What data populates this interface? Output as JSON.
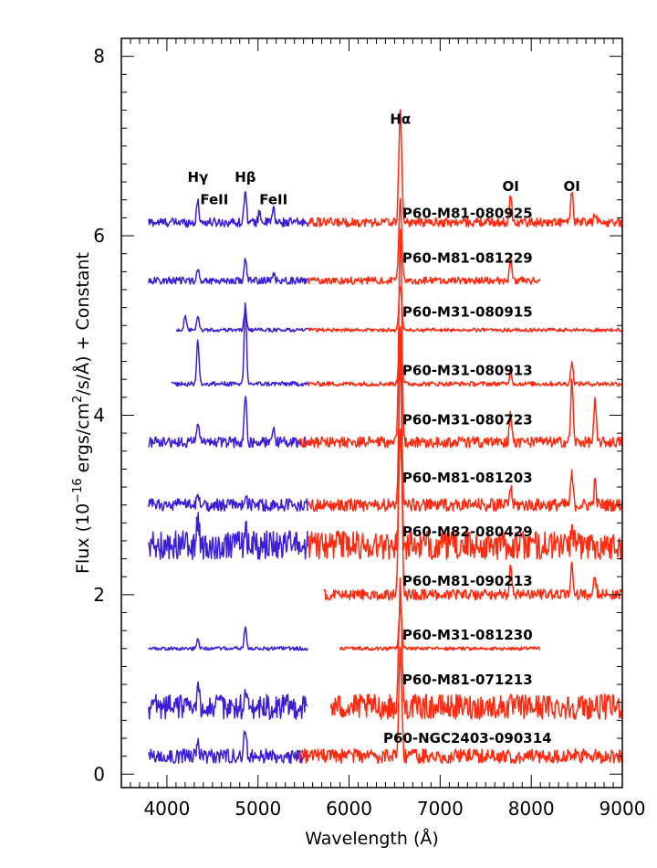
{
  "chart_data": {
    "type": "line",
    "xlabel": "Wavelength (Å)",
    "ylabel_parts": {
      "pre": "Flux (10",
      "exp": "−16",
      "mid": " ergs/cm",
      "exp2": "2",
      "post": "/s/Å) + Constant"
    },
    "xlim": [
      3500,
      9000
    ],
    "ylim": [
      -0.15,
      8.2
    ],
    "xticks": [
      4000,
      5000,
      6000,
      7000,
      8000,
      9000
    ],
    "yticks": [
      0,
      2,
      4,
      6,
      8
    ],
    "colors": {
      "blue_arm": "#3a1fd6",
      "red_arm": "#ff2a10"
    },
    "line_labels": [
      {
        "text": "Hγ",
        "x": 4340,
        "y": 6.6
      },
      {
        "text": "FeII",
        "x": 4520,
        "y": 6.35
      },
      {
        "text": "Hβ",
        "x": 4861,
        "y": 6.6
      },
      {
        "text": "FeII",
        "x": 5170,
        "y": 6.35
      },
      {
        "text": "Hα",
        "x": 6563,
        "y": 7.25
      },
      {
        "text": "OI",
        "x": 7774,
        "y": 6.5
      },
      {
        "text": "OI",
        "x": 8446,
        "y": 6.5
      }
    ],
    "series": [
      {
        "name": "P60-M81-080925",
        "label_y": 6.25,
        "offset": 6.15,
        "blue": [
          3800,
          5550
        ],
        "red": [
          5550,
          9000
        ],
        "ha": 1.25,
        "noise": 0.05,
        "lines": {
          "4340": 0.25,
          "4861": 0.4,
          "5018": 0.12,
          "5169": 0.15,
          "7774": 0.3,
          "8446": 0.35,
          "8700": 0.1
        }
      },
      {
        "name": "P60-M81-081229",
        "label_y": 5.75,
        "offset": 5.5,
        "blue": [
          3800,
          5550
        ],
        "red": [
          5550,
          8100
        ],
        "ha": 0.9,
        "noise": 0.04,
        "lines": {
          "4340": 0.12,
          "4861": 0.25,
          "5169": 0.08,
          "7774": 0.25
        }
      },
      {
        "name": "P60-M31-080915",
        "label_y": 5.15,
        "offset": 4.95,
        "blue": [
          4100,
          5550
        ],
        "red": [
          5550,
          9000
        ],
        "ha": 0.5,
        "noise": 0.02,
        "lines": {
          "4200": 0.15,
          "4340": 0.15,
          "4861": 0.25
        }
      },
      {
        "name": "P60-M31-080913",
        "label_y": 4.5,
        "offset": 4.35,
        "blue": [
          4050,
          5550
        ],
        "red": [
          5550,
          9000
        ],
        "ha": 0.6,
        "noise": 0.025,
        "lines": {
          "4340": 0.5,
          "4861": 0.9,
          "7774": 0.15,
          "8446": 0.25
        }
      },
      {
        "name": "P60-M31-080723",
        "label_y": 3.95,
        "offset": 3.7,
        "blue": [
          3800,
          5550
        ],
        "red": [
          5450,
          9000
        ],
        "ha": 2.4,
        "noise": 0.06,
        "lines": {
          "4340": 0.25,
          "4861": 0.55,
          "5169": 0.2,
          "7774": 0.35,
          "8446": 0.7,
          "8700": 0.45
        }
      },
      {
        "name": "P60-M81-081203",
        "label_y": 3.3,
        "offset": 3.0,
        "blue": [
          3800,
          5550
        ],
        "red": [
          5550,
          9000
        ],
        "ha": 1.7,
        "noise": 0.07,
        "lines": {
          "4340": 0.1,
          "4861": 0.12,
          "7774": 0.2,
          "8446": 0.35,
          "8700": 0.25
        }
      },
      {
        "name": "P60-M82-080429",
        "label_y": 2.7,
        "offset": 2.55,
        "blue": [
          3800,
          5550
        ],
        "red": [
          5550,
          9000
        ],
        "ha": 1.3,
        "noise": 0.16,
        "lines": {
          "4340": 0.3,
          "4861": 0.25,
          "8446": 0.2
        }
      },
      {
        "name": "P60-M81-090213",
        "label_y": 2.15,
        "offset": 2.0,
        "blue": null,
        "red": [
          5720,
          9000
        ],
        "ha": 3.0,
        "noise": 0.06,
        "lines": {
          "7774": 0.3,
          "8446": 0.4,
          "8700": 0.2
        }
      },
      {
        "name": "P60-M31-081230",
        "label_y": 1.55,
        "offset": 1.4,
        "blue": [
          3800,
          5550
        ],
        "red": [
          5900,
          8100
        ],
        "ha": 0.45,
        "noise": 0.02,
        "lines": {
          "4340": 0.12,
          "4861": 0.25
        }
      },
      {
        "name": "P60-M81-071213",
        "label_y": 1.05,
        "offset": 0.75,
        "blue": [
          3800,
          5550
        ],
        "red": [
          5800,
          9000
        ],
        "ha": 1.4,
        "noise": 0.14,
        "lines": {
          "4340": 0.2,
          "4861": 0.25
        }
      },
      {
        "name": "P60-NGC2403-090314",
        "label_y": 0.4,
        "offset": 0.2,
        "blue": [
          3800,
          5550
        ],
        "red": [
          5450,
          9000
        ],
        "ha": 1.2,
        "noise": 0.08,
        "lines": {
          "4340": 0.15,
          "4861": 0.35
        }
      }
    ]
  }
}
